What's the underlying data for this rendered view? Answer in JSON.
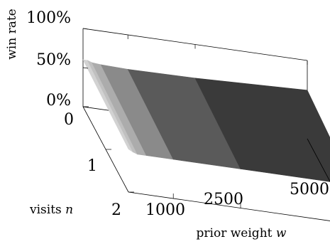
{
  "chart_data": {
    "type": "surface3d",
    "zlabel": "win rate",
    "ylabel_text": "visits",
    "ylabel_symbol": "n",
    "xlabel_text": "prior weight",
    "xlabel_symbol": "w",
    "z_ticks": [
      "0%",
      "50%",
      "100%"
    ],
    "y_ticks": [
      "0",
      "1",
      "2"
    ],
    "x_ticks": [
      "1000",
      "2500",
      "5000"
    ],
    "x_range": [
      0,
      5000
    ],
    "y_range": [
      0,
      2
    ],
    "z_range": [
      0,
      100
    ],
    "x_samples": [
      0,
      100,
      200,
      400,
      1000,
      2500,
      5000
    ],
    "surface_at_n0": [
      60,
      60,
      58,
      57,
      56,
      57,
      62
    ],
    "surface_at_n2": [
      55,
      52,
      50,
      50,
      50,
      50,
      50
    ]
  }
}
